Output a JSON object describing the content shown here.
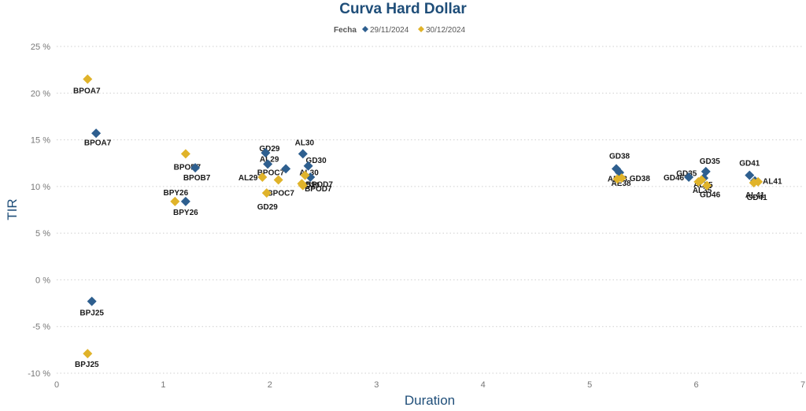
{
  "chart_data": {
    "type": "scatter",
    "title": "Curva Hard Dollar",
    "legend": {
      "title": "Fecha",
      "position": "top-center"
    },
    "xlabel": "Duration",
    "ylabel": "TIR",
    "xlim": [
      0,
      7
    ],
    "ylim": [
      -10,
      25
    ],
    "xticks": [
      "0",
      "1",
      "2",
      "3",
      "4",
      "5",
      "6",
      "7"
    ],
    "yticks": [
      "-10 %",
      "-5 %",
      "0 %",
      "5 %",
      "10 %",
      "15 %",
      "20 %",
      "25 %"
    ],
    "grid": "horizontal dotted",
    "series": [
      {
        "name": "29/11/2024",
        "color": "#2e5f8f",
        "points": [
          {
            "label": "BPOA7",
            "x": 0.37,
            "y": 15.7
          },
          {
            "label": "BPJ25",
            "x": 0.33,
            "y": -2.3
          },
          {
            "label": "BPOB7",
            "x": 1.3,
            "y": 12.0
          },
          {
            "label": "BPY26",
            "x": 1.21,
            "y": 8.4
          },
          {
            "label": "GD29",
            "x": 1.96,
            "y": 13.6
          },
          {
            "label": "AL29",
            "x": 1.98,
            "y": 12.4
          },
          {
            "label": "BPOC7",
            "x": 2.15,
            "y": 11.9
          },
          {
            "label": "AL30",
            "x": 2.31,
            "y": 13.5
          },
          {
            "label": "GD30",
            "x": 2.36,
            "y": 12.2
          },
          {
            "label": "BPOD7",
            "x": 2.38,
            "y": 11.0
          },
          {
            "label": "GD38",
            "x": 5.25,
            "y": 11.9
          },
          {
            "label": "AE38",
            "x": 5.28,
            "y": 11.5
          },
          {
            "label": "GD35",
            "x": 6.09,
            "y": 11.6
          },
          {
            "label": "GD46",
            "x": 5.93,
            "y": 11.0
          },
          {
            "label": "AL35",
            "x": 6.07,
            "y": 10.9
          },
          {
            "label": "GD41",
            "x": 6.5,
            "y": 11.2
          },
          {
            "label": "AL41",
            "x": 6.55,
            "y": 10.6
          }
        ]
      },
      {
        "name": "30/12/2024",
        "color": "#e0b32a",
        "points": [
          {
            "label": "BPOA7",
            "x": 0.29,
            "y": 21.5
          },
          {
            "label": "BPJ25",
            "x": 0.29,
            "y": -7.9
          },
          {
            "label": "BPOB7",
            "x": 1.21,
            "y": 13.5
          },
          {
            "label": "BPY26",
            "x": 1.11,
            "y": 8.4
          },
          {
            "label": "GD29",
            "x": 1.97,
            "y": 9.3
          },
          {
            "label": "AL29",
            "x": 1.93,
            "y": 11.0
          },
          {
            "label": "BPOC7",
            "x": 2.08,
            "y": 10.7
          },
          {
            "label": "AL30",
            "x": 2.33,
            "y": 11.2
          },
          {
            "label": "GD30",
            "x": 2.31,
            "y": 10.1
          },
          {
            "label": "BPOD7",
            "x": 2.3,
            "y": 10.3
          },
          {
            "label": "GD38",
            "x": 5.3,
            "y": 10.9
          },
          {
            "label": "AE38",
            "x": 5.26,
            "y": 10.8
          },
          {
            "label": "GD35",
            "x": 6.05,
            "y": 10.7
          },
          {
            "label": "GD46",
            "x": 6.1,
            "y": 10.1
          },
          {
            "label": "AL35",
            "x": 6.02,
            "y": 10.5
          },
          {
            "label": "GD41",
            "x": 6.54,
            "y": 10.4
          },
          {
            "label": "AL41",
            "x": 6.58,
            "y": 10.5
          }
        ]
      }
    ]
  }
}
